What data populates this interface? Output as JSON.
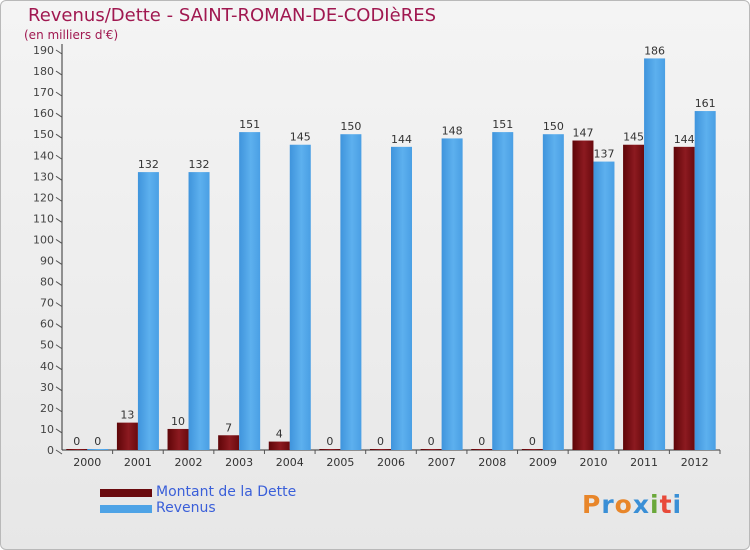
{
  "title": "Revenus/Dette - SAINT-ROMAN-DE-CODIèRES",
  "subtitle": "(en milliers d'€)",
  "chart_data": {
    "type": "bar",
    "categories": [
      "2000",
      "2001",
      "2002",
      "2003",
      "2004",
      "2005",
      "2006",
      "2007",
      "2008",
      "2009",
      "2010",
      "2011",
      "2012"
    ],
    "series": [
      {
        "name": "Montant de la Dette",
        "color": "#7a0f14",
        "values": [
          0,
          13,
          10,
          7,
          4,
          0,
          0,
          0,
          0,
          0,
          147,
          145,
          144
        ]
      },
      {
        "name": "Revenus",
        "color": "#4ea3e6",
        "values": [
          0,
          132,
          132,
          151,
          145,
          150,
          144,
          148,
          151,
          150,
          137,
          186,
          161
        ]
      }
    ],
    "ylim": [
      0,
      190
    ],
    "yticks": [
      0,
      10,
      20,
      30,
      40,
      50,
      60,
      70,
      80,
      90,
      100,
      110,
      120,
      130,
      140,
      150,
      160,
      170,
      180,
      190
    ],
    "grid": false,
    "legend": "bottom-left"
  },
  "legend": [
    {
      "label": "Montant de la Dette",
      "color": "#6a0a0e"
    },
    {
      "label": "Revenus",
      "color": "#4ea3e6"
    }
  ],
  "logo": {
    "text": "Proxiti",
    "colors": [
      "#e8862a",
      "#3a8fd6",
      "#e8862a",
      "#3a8fd6",
      "#6aa83a",
      "#e84a3a",
      "#3a8fd6"
    ]
  }
}
